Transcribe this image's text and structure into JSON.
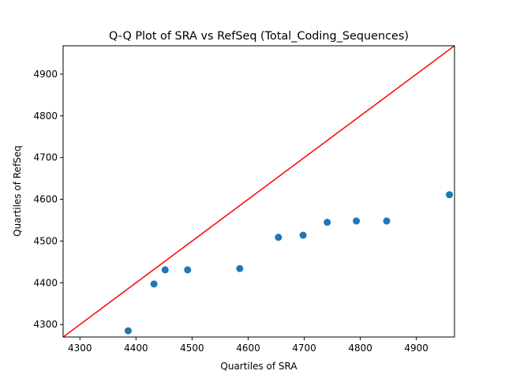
{
  "chart_data": {
    "type": "scatter",
    "title": "Q-Q Plot of SRA vs RefSeq (Total_Coding_Sequences)",
    "xlabel": "Quartiles of SRA",
    "ylabel": "Quartiles of RefSeq",
    "xlim": [
      4270,
      4968
    ],
    "ylim": [
      4270,
      4968
    ],
    "xticks": [
      4300,
      4400,
      4500,
      4600,
      4700,
      4800,
      4900
    ],
    "yticks": [
      4300,
      4400,
      4500,
      4600,
      4700,
      4800,
      4900
    ],
    "grid": false,
    "point_color": "#1f77b4",
    "reference_line": {
      "color": "#ff0000",
      "from": [
        4270,
        4270
      ],
      "to": [
        4968,
        4968
      ]
    },
    "points": [
      {
        "x": 4386,
        "y": 4285
      },
      {
        "x": 4432,
        "y": 4397
      },
      {
        "x": 4452,
        "y": 4431
      },
      {
        "x": 4492,
        "y": 4431
      },
      {
        "x": 4585,
        "y": 4434
      },
      {
        "x": 4654,
        "y": 4509
      },
      {
        "x": 4698,
        "y": 4514
      },
      {
        "x": 4741,
        "y": 4545
      },
      {
        "x": 4793,
        "y": 4548
      },
      {
        "x": 4847,
        "y": 4548
      },
      {
        "x": 4959,
        "y": 4611
      }
    ]
  }
}
